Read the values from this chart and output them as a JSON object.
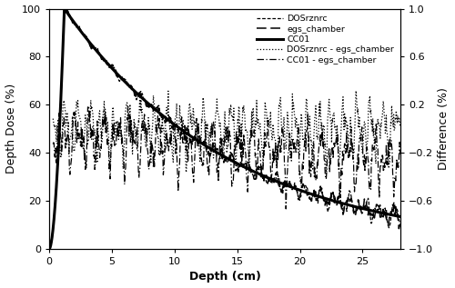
{
  "xlabel": "Depth (cm)",
  "ylabel_left": "Depth Dose (%)",
  "ylabel_right": "Difference (%)",
  "xlim": [
    0,
    28
  ],
  "ylim_left": [
    0,
    100
  ],
  "ylim_right": [
    -1.0,
    1.0
  ],
  "xticks": [
    0,
    5,
    10,
    15,
    20,
    25
  ],
  "yticks_left": [
    0,
    20,
    40,
    60,
    80,
    100
  ],
  "yticks_right": [
    -1.0,
    -0.6,
    -0.2,
    0.2,
    0.6,
    1.0
  ],
  "legend_entries": [
    "DOSrznrc",
    "egs_chamber",
    "CC01",
    "DOSrznrc - egs_chamber",
    "CC01 - egs_chamber"
  ],
  "background_color": "#ffffff",
  "seed": 7
}
